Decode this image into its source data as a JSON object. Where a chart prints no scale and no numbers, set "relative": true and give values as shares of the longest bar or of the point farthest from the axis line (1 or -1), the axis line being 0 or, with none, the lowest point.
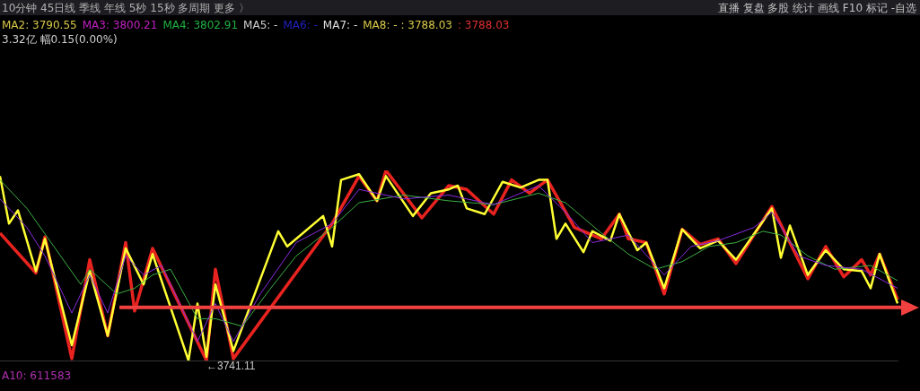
{
  "chart_data": {
    "type": "line",
    "relative": true,
    "categories": [
      null,
      null,
      null,
      null,
      null,
      null,
      null,
      null,
      null,
      null,
      null,
      null,
      null,
      null,
      null,
      null,
      null,
      null,
      null,
      null,
      null,
      null,
      null,
      null,
      null,
      null,
      null,
      null,
      null,
      null,
      null,
      null,
      null,
      null,
      null,
      null,
      null,
      null,
      null,
      null,
      null,
      null,
      null,
      null,
      null,
      null,
      null,
      null,
      null,
      null,
      null,
      null,
      null,
      null,
      null,
      null,
      null,
      null,
      null,
      null,
      null,
      null,
      null,
      null,
      null,
      null,
      null,
      null,
      null,
      null,
      null,
      null,
      null,
      null,
      null,
      null,
      null,
      null,
      null,
      null,
      null,
      null,
      null,
      null,
      null,
      null,
      null,
      null,
      null,
      null,
      null,
      null,
      null,
      null,
      null,
      null,
      null,
      null,
      null,
      null,
      null
    ],
    "series": [
      {
        "color": "#8a2be2",
        "values": [
          0.85,
          null,
          null,
          0.7,
          null,
          0.55,
          null,
          null,
          0.25,
          null,
          0.45,
          null,
          0.25,
          null,
          0.55,
          null,
          0.45,
          null,
          0.5,
          null,
          null,
          null,
          0.1,
          null,
          0.3,
          null,
          0.1,
          null,
          null,
          0.35,
          null,
          null,
          null,
          0.62,
          null,
          null,
          null,
          0.72,
          null,
          null,
          0.9,
          null,
          null,
          null,
          null,
          0.85,
          null,
          null,
          null,
          null,
          0.87,
          null,
          null,
          null,
          null,
          0.82,
          null,
          null,
          null,
          null,
          0.92,
          null,
          null,
          0.78,
          null,
          null,
          0.62,
          null,
          null,
          null,
          0.66,
          null,
          null,
          null,
          0.45,
          null,
          null,
          0.6,
          null,
          null,
          0.63,
          null,
          null,
          null,
          0.7,
          null,
          0.78,
          null,
          null,
          0.55,
          null,
          null,
          0.5,
          null,
          null,
          null,
          0.48,
          null,
          null,
          null,
          0.38
        ]
      },
      {
        "color": "#3cb043",
        "values": [
          0.95,
          null,
          null,
          0.8,
          null,
          null,
          0.6,
          null,
          null,
          0.4,
          0.48,
          null,
          null,
          0.35,
          null,
          0.38,
          null,
          0.45,
          null,
          0.48,
          null,
          null,
          0.22,
          null,
          0.22,
          null,
          null,
          0.18,
          null,
          null,
          0.37,
          null,
          null,
          0.55,
          null,
          null,
          null,
          0.7,
          null,
          null,
          0.83,
          null,
          null,
          null,
          null,
          0.87,
          null,
          null,
          null,
          null,
          0.84,
          null,
          null,
          null,
          null,
          0.82,
          null,
          null,
          null,
          null,
          0.88,
          null,
          null,
          0.83,
          null,
          null,
          null,
          0.67,
          null,
          null,
          0.56,
          null,
          null,
          0.48,
          null,
          null,
          0.52,
          null,
          null,
          0.6,
          null,
          null,
          0.62,
          null,
          null,
          0.68,
          null,
          0.66,
          null,
          null,
          0.55,
          null,
          null,
          0.48,
          null,
          null,
          null,
          0.5,
          null,
          null,
          0.42
        ]
      },
      {
        "color": "#ffff33",
        "values": [
          0.97,
          0.72,
          0.79,
          null,
          0.47,
          0.64,
          null,
          null,
          0.08,
          null,
          0.47,
          null,
          0.13,
          null,
          0.59,
          null,
          0.4,
          0.56,
          null,
          null,
          null,
          0.0,
          0.3,
          0.02,
          0.4,
          null,
          0.05,
          null,
          null,
          null,
          null,
          0.68,
          0.6,
          null,
          null,
          null,
          0.76,
          0.6,
          0.95,
          null,
          0.98,
          null,
          0.84,
          0.97,
          null,
          null,
          0.76,
          null,
          0.88,
          null,
          0.9,
          0.92,
          0.8,
          null,
          0.77,
          null,
          0.94,
          null,
          0.91,
          null,
          0.95,
          0.95,
          0.64,
          0.72,
          null,
          0.57,
          0.68,
          null,
          0.63,
          0.77,
          null,
          0.58,
          0.62,
          null,
          0.38,
          null,
          0.69,
          null,
          0.59,
          null,
          0.63,
          null,
          0.53,
          null,
          null,
          null,
          0.8,
          0.54,
          0.71,
          null,
          0.45,
          null,
          0.58,
          null,
          0.48,
          null,
          0.47,
          0.38,
          0.56,
          null,
          0.3
        ]
      },
      {
        "color": "#e8231f",
        "values": [
          0.67,
          null,
          null,
          null,
          0.46,
          0.65,
          null,
          null,
          0.01,
          null,
          0.53,
          null,
          0.13,
          null,
          0.62,
          0.26,
          null,
          0.59,
          null,
          null,
          null,
          null,
          null,
          0.0,
          0.48,
          null,
          0.01,
          null,
          null,
          null,
          null,
          null,
          null,
          null,
          null,
          null,
          null,
          0.72,
          null,
          null,
          0.97,
          null,
          0.84,
          1,
          null,
          null,
          null,
          0.75,
          null,
          null,
          0.92,
          null,
          0.9,
          null,
          null,
          0.77,
          null,
          0.95,
          null,
          0.88,
          null,
          0.95,
          null,
          null,
          0.7,
          null,
          null,
          0.64,
          null,
          0.77,
          0.64,
          null,
          0.62,
          null,
          0.35,
          null,
          0.69,
          null,
          0.61,
          null,
          0.64,
          null,
          0.51,
          null,
          null,
          null,
          0.81,
          null,
          null,
          null,
          0.43,
          null,
          0.6,
          null,
          0.44,
          null,
          0.53,
          0.45,
          0.56,
          null,
          0.32
        ]
      }
    ],
    "ref_lines": [
      {
        "axis": "y",
        "value": 0.28,
        "color": "#f04040"
      }
    ],
    "annotations": [
      "10分钟 45日线 季线 年线 5秒 15秒 多周期 更多 〉",
      "直播 复盘 多股 统计 画线 F10 标记 -自选",
      "MA2: 3790.55",
      "MA3: 3800.21",
      "MA4: 3802.91",
      "MA5: -",
      "MA6: -",
      "MA7: -",
      "MA8: - : 3788.03",
      ": 3788.03",
      "3.32亿 幅0.15(0.00%)",
      "A10: 611583",
      "←3741.11"
    ]
  }
}
